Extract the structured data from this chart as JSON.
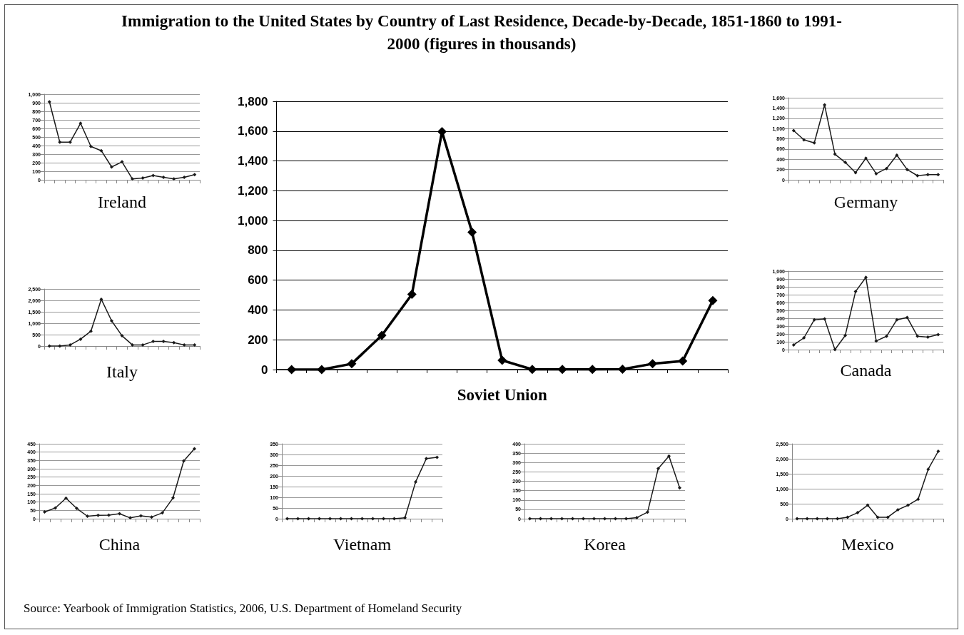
{
  "chart_data": [
    {
      "type": "line",
      "title": "Immigration to the United States by Country of Last Residence, Decade-by-Decade, 1851-1860 to 1991-2000  (figures in thousands)",
      "xlabel": "Ireland",
      "categories": [
        null,
        null,
        null,
        null,
        null,
        null,
        null,
        null,
        null,
        null,
        null,
        null,
        null,
        null,
        null
      ],
      "values": [
        910,
        440,
        440,
        660,
        390,
        340,
        150,
        210,
        10,
        20,
        50,
        30,
        10,
        30,
        60
      ],
      "color": "#1a1a1a",
      "ylim": [
        0,
        1000
      ],
      "yticks": [
        0,
        100,
        200,
        300,
        400,
        500,
        600,
        700,
        800,
        900,
        {
          "value": 1000,
          "label": "1,000"
        }
      ],
      "grid": "y",
      "marker": "diamond",
      "line_style": "solid"
    },
    {
      "type": "line",
      "xlabel": "Italy",
      "categories": [
        null,
        null,
        null,
        null,
        null,
        null,
        null,
        null,
        null,
        null,
        null,
        null,
        null,
        null,
        null
      ],
      "values": [
        0,
        0,
        50,
        300,
        650,
        2050,
        1100,
        450,
        50,
        50,
        200,
        200,
        150,
        50,
        50
      ],
      "color": "#1a1a1a",
      "ylim": [
        0,
        2500
      ],
      "yticks": [
        0,
        500,
        {
          "value": 1000,
          "label": "1,000"
        },
        {
          "value": 1500,
          "label": "1,500"
        },
        {
          "value": 2000,
          "label": "2,000"
        },
        {
          "value": 2500,
          "label": "2,500"
        }
      ],
      "grid": "y",
      "marker": "diamond",
      "line_style": "solid"
    },
    {
      "type": "line",
      "xlabel": "Soviet Union",
      "categories": [
        null,
        null,
        null,
        null,
        null,
        null,
        null,
        null,
        null,
        null,
        null,
        null,
        null,
        null,
        null
      ],
      "values": [
        0,
        0,
        39,
        230,
        505,
        1597,
        921,
        62,
        1,
        1,
        1,
        2,
        39,
        57,
        463
      ],
      "color": "#000000",
      "ylim": [
        0,
        1800
      ],
      "yticks": [
        0,
        200,
        400,
        600,
        800,
        {
          "value": 1000,
          "label": "1,000"
        },
        {
          "value": 1200,
          "label": "1,200"
        },
        {
          "value": 1400,
          "label": "1,400"
        },
        {
          "value": 1600,
          "label": "1,600"
        },
        {
          "value": 1800,
          "label": "1,800"
        }
      ],
      "grid": "y",
      "marker": "diamond",
      "line_style": "solid"
    },
    {
      "type": "line",
      "xlabel": "Germany",
      "categories": [
        null,
        null,
        null,
        null,
        null,
        null,
        null,
        null,
        null,
        null,
        null,
        null,
        null,
        null,
        null
      ],
      "values": [
        960,
        780,
        720,
        1460,
        500,
        340,
        140,
        420,
        120,
        220,
        480,
        200,
        80,
        100,
        100
      ],
      "color": "#1a1a1a",
      "ylim": [
        0,
        1600
      ],
      "yticks": [
        0,
        200,
        400,
        600,
        800,
        {
          "value": 1000,
          "label": "1,000"
        },
        {
          "value": 1200,
          "label": "1,200"
        },
        {
          "value": 1400,
          "label": "1,400"
        },
        {
          "value": 1600,
          "label": "1,600"
        }
      ],
      "grid": "y",
      "marker": "diamond",
      "line_style": "solid"
    },
    {
      "type": "line",
      "xlabel": "Canada",
      "categories": [
        null,
        null,
        null,
        null,
        null,
        null,
        null,
        null,
        null,
        null,
        null,
        null,
        null,
        null,
        null
      ],
      "values": [
        60,
        150,
        380,
        390,
        0,
        180,
        740,
        920,
        110,
        170,
        380,
        410,
        170,
        160,
        190
      ],
      "color": "#1a1a1a",
      "ylim": [
        0,
        1000
      ],
      "yticks": [
        0,
        100,
        200,
        300,
        400,
        500,
        600,
        700,
        800,
        900,
        {
          "value": 1000,
          "label": "1,000"
        }
      ],
      "grid": "y",
      "marker": "diamond",
      "line_style": "solid"
    },
    {
      "type": "line",
      "xlabel": "China",
      "categories": [
        null,
        null,
        null,
        null,
        null,
        null,
        null,
        null,
        null,
        null,
        null,
        null,
        null,
        null,
        null
      ],
      "values": [
        41,
        64,
        123,
        62,
        15,
        20,
        21,
        30,
        5,
        17,
        10,
        35,
        125,
        347,
        420
      ],
      "color": "#1a1a1a",
      "ylim": [
        0,
        450
      ],
      "yticks": [
        0,
        50,
        100,
        150,
        200,
        250,
        300,
        350,
        400,
        450
      ],
      "grid": "y",
      "marker": "diamond",
      "line_style": "solid"
    },
    {
      "type": "line",
      "xlabel": "Vietnam",
      "categories": [
        null,
        null,
        null,
        null,
        null,
        null,
        null,
        null,
        null,
        null,
        null,
        null,
        null,
        null,
        null
      ],
      "values": [
        0,
        0,
        0,
        0,
        0,
        0,
        0,
        0,
        0,
        0,
        0,
        4,
        172,
        281,
        287
      ],
      "color": "#1a1a1a",
      "ylim": [
        0,
        350
      ],
      "yticks": [
        0,
        50,
        100,
        150,
        200,
        250,
        300,
        350
      ],
      "grid": "y",
      "marker": "diamond",
      "line_style": "solid"
    },
    {
      "type": "line",
      "xlabel": "Korea",
      "categories": [
        null,
        null,
        null,
        null,
        null,
        null,
        null,
        null,
        null,
        null,
        null,
        null,
        null,
        null,
        null
      ],
      "values": [
        0,
        0,
        0,
        0,
        0,
        0,
        0,
        0,
        0,
        0,
        6,
        35,
        268,
        334,
        165
      ],
      "color": "#1a1a1a",
      "ylim": [
        0,
        400
      ],
      "yticks": [
        0,
        50,
        100,
        150,
        200,
        250,
        300,
        350,
        400
      ],
      "grid": "y",
      "marker": "diamond",
      "line_style": "solid"
    },
    {
      "type": "line",
      "xlabel": "Mexico",
      "annotations": [
        "Source: Yearbook of Immigration Statistics, 2006, U.S. Department of Homeland Security"
      ],
      "categories": [
        null,
        null,
        null,
        null,
        null,
        null,
        null,
        null,
        null,
        null,
        null,
        null,
        null,
        null,
        null
      ],
      "values": [
        0,
        0,
        0,
        0,
        0,
        50,
        200,
        450,
        50,
        50,
        300,
        450,
        650,
        1650,
        2250
      ],
      "color": "#1a1a1a",
      "ylim": [
        0,
        2500
      ],
      "yticks": [
        0,
        500,
        {
          "value": 1000,
          "label": "1,000"
        },
        {
          "value": 1500,
          "label": "1,500"
        },
        {
          "value": 2000,
          "label": "2,000"
        },
        {
          "value": 2500,
          "label": "2,500"
        }
      ],
      "grid": "y",
      "marker": "diamond",
      "line_style": "solid"
    }
  ]
}
